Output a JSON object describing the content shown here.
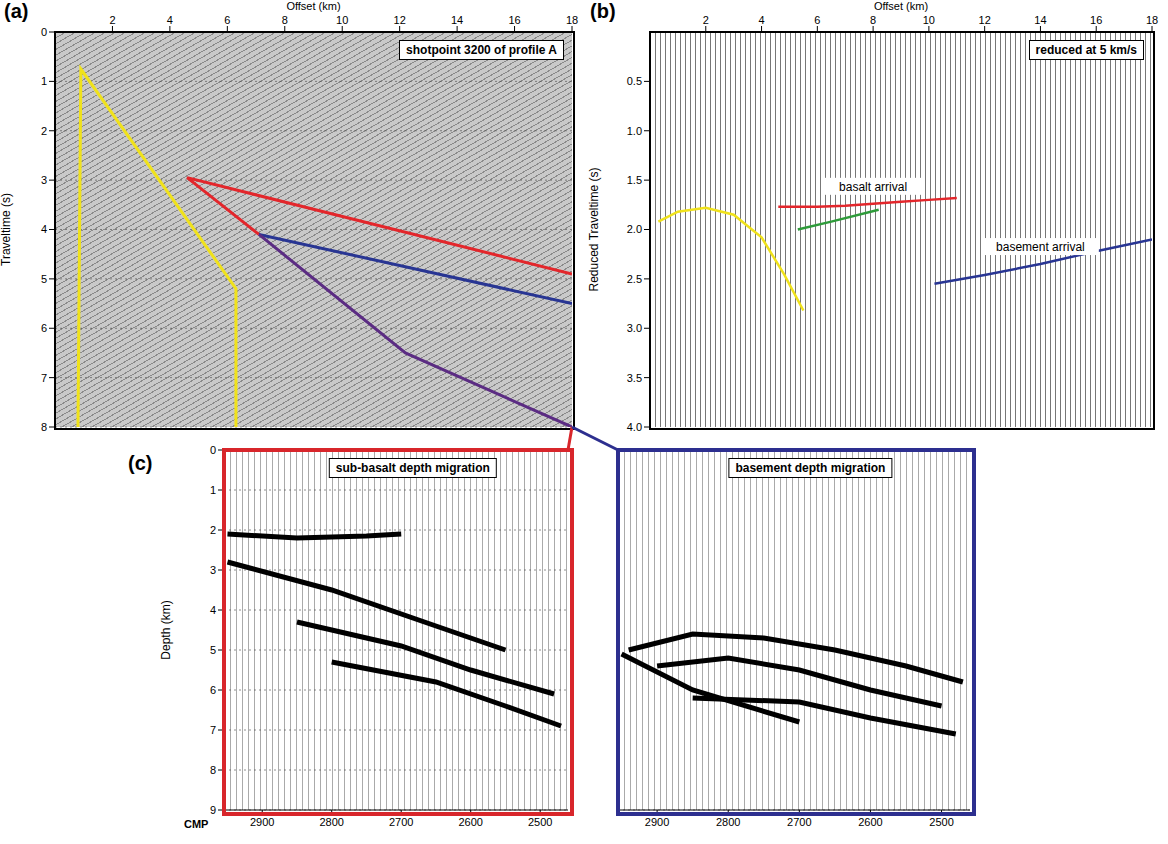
{
  "chart_data": [
    {
      "label": "(a)",
      "type": "line",
      "title": "shotpoint 3200 of profile A",
      "x_label": "Offset (km)",
      "y_label": "Traveltime (s)",
      "xlim": [
        0,
        18
      ],
      "xticks": [
        2,
        4,
        6,
        8,
        10,
        12,
        14,
        16,
        18
      ],
      "ylim": [
        8,
        0
      ],
      "yticks": [
        0,
        1,
        2,
        3,
        4,
        5,
        6,
        7,
        8
      ],
      "grid": true,
      "series": [
        {
          "color": "#f0e21b",
          "x": [
            0.8,
            0.9,
            6.3,
            6.3
          ],
          "values": [
            8,
            0.75,
            5.2,
            8
          ]
        },
        {
          "color": "#e3262b",
          "x": [
            18,
            4.6,
            7.1
          ],
          "values": [
            4.9,
            2.95,
            4.1
          ]
        },
        {
          "color": "#283593",
          "x": [
            18,
            7.1
          ],
          "values": [
            5.5,
            4.1
          ]
        },
        {
          "color": "#5b2c83",
          "x": [
            7.1,
            12.2,
            18
          ],
          "values": [
            4.1,
            6.5,
            8
          ]
        }
      ]
    },
    {
      "label": "(b)",
      "type": "line",
      "title": "reduced at 5 km/s",
      "x_label": "Offset (km)",
      "y_label": "Reduced Traveltime (s)",
      "xlim": [
        0,
        18
      ],
      "xticks": [
        2,
        4,
        6,
        8,
        10,
        12,
        14,
        16,
        18
      ],
      "ylim": [
        4,
        0
      ],
      "yticks": [
        0.5,
        {
          "value": 1,
          "label": "1.0"
        },
        1.5,
        {
          "value": 2,
          "label": "2.0"
        },
        2.5,
        {
          "value": 3,
          "label": "3.0"
        },
        3.5,
        {
          "value": 4,
          "label": "4.0"
        }
      ],
      "series": [
        {
          "color": "#f0e21b",
          "x": [
            0.3,
            1,
            2,
            3,
            4,
            4.8,
            5.5
          ],
          "values": [
            1.92,
            1.82,
            1.78,
            1.85,
            2.08,
            2.45,
            2.82
          ]
        },
        {
          "name": "basalt arrival",
          "color": "#e3262b",
          "x": [
            4.6,
            6,
            7,
            8,
            9,
            10,
            11
          ],
          "values": [
            1.77,
            1.77,
            1.76,
            1.74,
            1.72,
            1.7,
            1.68
          ]
        },
        {
          "color": "#2e9b3a",
          "x": [
            5.3,
            6.5,
            8.2
          ],
          "values": [
            2.0,
            1.92,
            1.8
          ]
        },
        {
          "name": "basement arrival",
          "color": "#283593",
          "x": [
            10.2,
            12,
            14,
            16,
            18
          ],
          "values": [
            2.55,
            2.46,
            2.35,
            2.22,
            2.1
          ]
        }
      ]
    },
    {
      "label": "(c)",
      "type": "line",
      "title": "sub-basalt depth migration",
      "x_label": "CMP",
      "y_label": "Depth (km)",
      "color": "#d8262b",
      "xlim": [
        2955,
        2460
      ],
      "xticks": [
        2900,
        2800,
        2700,
        2600,
        2500
      ],
      "ylim": [
        9,
        0
      ],
      "yticks": [
        0,
        1,
        2,
        3,
        4,
        5,
        6,
        7,
        8,
        9
      ],
      "grid": true,
      "series": [
        {
          "color": "#000000",
          "x": [
            2950,
            2850,
            2750,
            2700
          ],
          "values": [
            2.1,
            2.2,
            2.15,
            2.1
          ]
        },
        {
          "color": "#000000",
          "x": [
            2950,
            2800,
            2650,
            2550
          ],
          "values": [
            2.8,
            3.5,
            4.4,
            5.0
          ]
        },
        {
          "color": "#000000",
          "x": [
            2850,
            2700,
            2600,
            2480
          ],
          "values": [
            4.3,
            4.9,
            5.5,
            6.1
          ]
        },
        {
          "color": "#000000",
          "x": [
            2800,
            2650,
            2550,
            2470
          ],
          "values": [
            5.3,
            5.8,
            6.4,
            6.9
          ]
        }
      ]
    },
    {
      "type": "line",
      "title": "basement depth migration",
      "color": "#2d2f8f",
      "xlim": [
        2955,
        2460
      ],
      "xticks": [
        2900,
        2800,
        2700,
        2600,
        2500
      ],
      "ylim": [
        9,
        0
      ],
      "yticks": [
        0,
        1,
        2,
        3,
        4,
        5,
        6,
        7,
        8,
        9
      ],
      "grid": true,
      "tick_labels": "x",
      "series": [
        {
          "color": "#000000",
          "x": [
            2940,
            2850,
            2750,
            2650,
            2550,
            2470
          ],
          "values": [
            5.0,
            4.6,
            4.7,
            5.0,
            5.4,
            5.8
          ]
        },
        {
          "color": "#000000",
          "x": [
            2900,
            2800,
            2700,
            2600,
            2500
          ],
          "values": [
            5.4,
            5.2,
            5.5,
            6.0,
            6.4
          ]
        },
        {
          "color": "#000000",
          "x": [
            2850,
            2700,
            2600,
            2480
          ],
          "values": [
            6.2,
            6.3,
            6.7,
            7.1
          ]
        },
        {
          "color": "#000000",
          "x": [
            2950,
            2850,
            2700
          ],
          "values": [
            5.1,
            6.0,
            6.8
          ]
        }
      ]
    }
  ]
}
